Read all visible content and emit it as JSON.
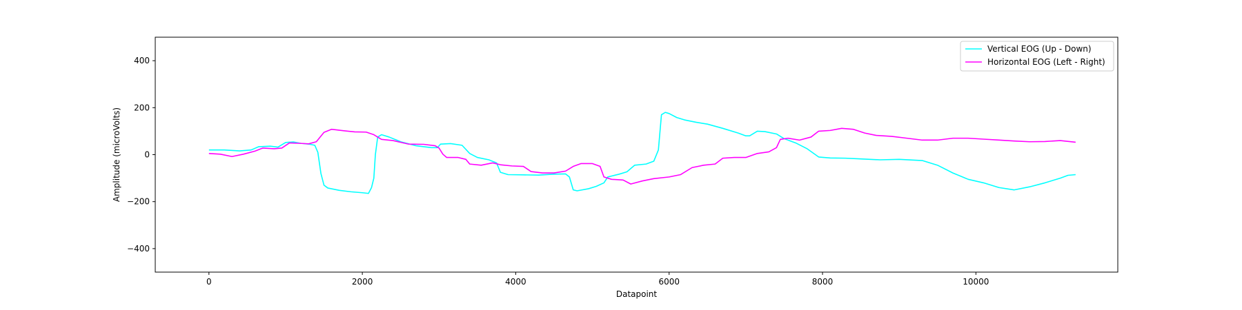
{
  "chart_data": {
    "type": "line",
    "title": "",
    "xlabel": "Datapoint",
    "ylabel": "Amplitude (microVolts)",
    "xlim": [
      -700,
      11850
    ],
    "ylim": [
      -500,
      500
    ],
    "x_ticks": [
      0,
      2000,
      4000,
      6000,
      8000,
      10000
    ],
    "y_ticks": [
      -400,
      -200,
      0,
      200,
      400
    ],
    "grid": false,
    "legend_position": "top-right",
    "series": [
      {
        "name": "Vertical EOG (Up - Down)",
        "color": "#00ffff",
        "points": [
          [
            0,
            20
          ],
          [
            200,
            20
          ],
          [
            400,
            16
          ],
          [
            550,
            20
          ],
          [
            650,
            34
          ],
          [
            800,
            36
          ],
          [
            900,
            32
          ],
          [
            1000,
            52
          ],
          [
            1100,
            54
          ],
          [
            1200,
            48
          ],
          [
            1300,
            45
          ],
          [
            1380,
            40
          ],
          [
            1420,
            10
          ],
          [
            1460,
            -80
          ],
          [
            1500,
            -130
          ],
          [
            1550,
            -142
          ],
          [
            1700,
            -152
          ],
          [
            1850,
            -158
          ],
          [
            2000,
            -162
          ],
          [
            2080,
            -165
          ],
          [
            2120,
            -140
          ],
          [
            2150,
            -100
          ],
          [
            2170,
            0
          ],
          [
            2200,
            75
          ],
          [
            2250,
            85
          ],
          [
            2350,
            75
          ],
          [
            2500,
            55
          ],
          [
            2700,
            38
          ],
          [
            2900,
            30
          ],
          [
            2980,
            30
          ],
          [
            3020,
            45
          ],
          [
            3150,
            47
          ],
          [
            3300,
            40
          ],
          [
            3400,
            5
          ],
          [
            3500,
            -12
          ],
          [
            3650,
            -22
          ],
          [
            3750,
            -35
          ],
          [
            3800,
            -75
          ],
          [
            3900,
            -85
          ],
          [
            4100,
            -86
          ],
          [
            4300,
            -87
          ],
          [
            4500,
            -83
          ],
          [
            4650,
            -82
          ],
          [
            4700,
            -95
          ],
          [
            4750,
            -150
          ],
          [
            4800,
            -154
          ],
          [
            4950,
            -145
          ],
          [
            5050,
            -135
          ],
          [
            5150,
            -120
          ],
          [
            5200,
            -95
          ],
          [
            5350,
            -83
          ],
          [
            5450,
            -73
          ],
          [
            5550,
            -45
          ],
          [
            5700,
            -40
          ],
          [
            5800,
            -28
          ],
          [
            5860,
            20
          ],
          [
            5900,
            170
          ],
          [
            5950,
            180
          ],
          [
            6000,
            175
          ],
          [
            6100,
            158
          ],
          [
            6200,
            148
          ],
          [
            6350,
            138
          ],
          [
            6500,
            130
          ],
          [
            6700,
            112
          ],
          [
            6900,
            92
          ],
          [
            7000,
            80
          ],
          [
            7050,
            80
          ],
          [
            7150,
            100
          ],
          [
            7250,
            98
          ],
          [
            7400,
            88
          ],
          [
            7500,
            68
          ],
          [
            7650,
            50
          ],
          [
            7800,
            25
          ],
          [
            7950,
            -10
          ],
          [
            8100,
            -14
          ],
          [
            8300,
            -15
          ],
          [
            8500,
            -18
          ],
          [
            8750,
            -22
          ],
          [
            9000,
            -20
          ],
          [
            9300,
            -25
          ],
          [
            9500,
            -45
          ],
          [
            9700,
            -78
          ],
          [
            9900,
            -105
          ],
          [
            10100,
            -120
          ],
          [
            10300,
            -140
          ],
          [
            10500,
            -150
          ],
          [
            10700,
            -137
          ],
          [
            10900,
            -120
          ],
          [
            11100,
            -100
          ],
          [
            11200,
            -88
          ],
          [
            11300,
            -85
          ]
        ]
      },
      {
        "name": "Horizontal EOG (Left - Right)",
        "color": "#ff00ff",
        "points": [
          [
            0,
            5
          ],
          [
            150,
            2
          ],
          [
            300,
            -8
          ],
          [
            450,
            2
          ],
          [
            600,
            15
          ],
          [
            700,
            28
          ],
          [
            850,
            25
          ],
          [
            950,
            28
          ],
          [
            1050,
            50
          ],
          [
            1200,
            48
          ],
          [
            1300,
            46
          ],
          [
            1400,
            55
          ],
          [
            1500,
            95
          ],
          [
            1600,
            108
          ],
          [
            1750,
            102
          ],
          [
            1900,
            97
          ],
          [
            2050,
            96
          ],
          [
            2150,
            85
          ],
          [
            2250,
            65
          ],
          [
            2400,
            60
          ],
          [
            2600,
            45
          ],
          [
            2800,
            44
          ],
          [
            2950,
            38
          ],
          [
            3000,
            28
          ],
          [
            3050,
            2
          ],
          [
            3100,
            -12
          ],
          [
            3250,
            -12
          ],
          [
            3350,
            -20
          ],
          [
            3400,
            -40
          ],
          [
            3550,
            -45
          ],
          [
            3700,
            -35
          ],
          [
            3800,
            -43
          ],
          [
            3950,
            -48
          ],
          [
            4100,
            -50
          ],
          [
            4200,
            -72
          ],
          [
            4350,
            -78
          ],
          [
            4500,
            -78
          ],
          [
            4650,
            -70
          ],
          [
            4750,
            -50
          ],
          [
            4850,
            -38
          ],
          [
            5000,
            -38
          ],
          [
            5100,
            -50
          ],
          [
            5150,
            -95
          ],
          [
            5250,
            -105
          ],
          [
            5400,
            -108
          ],
          [
            5500,
            -125
          ],
          [
            5650,
            -112
          ],
          [
            5800,
            -102
          ],
          [
            6000,
            -95
          ],
          [
            6150,
            -85
          ],
          [
            6300,
            -55
          ],
          [
            6450,
            -45
          ],
          [
            6600,
            -40
          ],
          [
            6700,
            -15
          ],
          [
            6850,
            -12
          ],
          [
            7000,
            -12
          ],
          [
            7150,
            5
          ],
          [
            7300,
            12
          ],
          [
            7400,
            30
          ],
          [
            7450,
            65
          ],
          [
            7550,
            70
          ],
          [
            7700,
            62
          ],
          [
            7850,
            75
          ],
          [
            7950,
            100
          ],
          [
            8100,
            103
          ],
          [
            8250,
            112
          ],
          [
            8400,
            108
          ],
          [
            8550,
            92
          ],
          [
            8700,
            82
          ],
          [
            8900,
            78
          ],
          [
            9100,
            70
          ],
          [
            9300,
            62
          ],
          [
            9500,
            62
          ],
          [
            9700,
            70
          ],
          [
            9900,
            70
          ],
          [
            10100,
            66
          ],
          [
            10300,
            62
          ],
          [
            10500,
            58
          ],
          [
            10700,
            55
          ],
          [
            10900,
            56
          ],
          [
            11100,
            60
          ],
          [
            11300,
            53
          ]
        ]
      }
    ]
  }
}
